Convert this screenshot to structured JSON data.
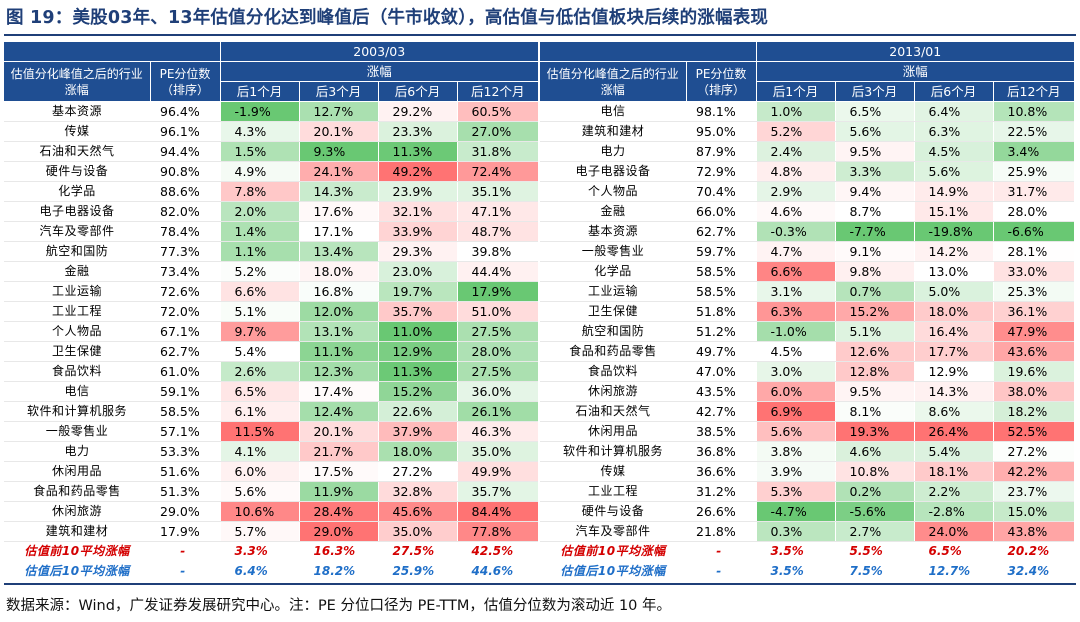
{
  "title": "图 19：美股03年、13年估值分化达到峰值后（牛市收敛），高估值与低估值板块后续的涨幅表现",
  "headers": {
    "industry": "估值分化峰值之后的行业涨幅",
    "pe": "PE分位数（排序）",
    "gain": "涨幅",
    "periods": [
      "后1个月",
      "后3个月",
      "后6个月",
      "后12个月"
    ]
  },
  "footnote": "数据来源：Wind，广发证券发展研究中心。注：PE 分位口径为 PE-TTM，估值分位数为滚动近 10 年。",
  "colors": {
    "header_bg": "#1f4e92",
    "title": "#1f3f78",
    "avg_pre": "#d40000",
    "avg_post": "#1f6fc8"
  },
  "panels": [
    {
      "period": "2003/03",
      "industry_header": "估值分化峰值之后的行业涨幅",
      "rows": [
        {
          "industry": "基本资源",
          "pe": "96.4%",
          "m1": "-1.9%",
          "m3": "12.7%",
          "m6": "29.2%",
          "m12": "60.5%"
        },
        {
          "industry": "传媒",
          "pe": "96.1%",
          "m1": "4.3%",
          "m3": "20.1%",
          "m6": "23.3%",
          "m12": "27.0%"
        },
        {
          "industry": "石油和天然气",
          "pe": "94.4%",
          "m1": "1.5%",
          "m3": "9.3%",
          "m6": "11.3%",
          "m12": "31.8%"
        },
        {
          "industry": "硬件与设备",
          "pe": "90.8%",
          "m1": "4.9%",
          "m3": "24.1%",
          "m6": "49.2%",
          "m12": "72.4%"
        },
        {
          "industry": "化学品",
          "pe": "88.6%",
          "m1": "7.8%",
          "m3": "14.3%",
          "m6": "23.9%",
          "m12": "35.1%"
        },
        {
          "industry": "电子电器设备",
          "pe": "82.0%",
          "m1": "2.0%",
          "m3": "17.6%",
          "m6": "32.1%",
          "m12": "47.1%"
        },
        {
          "industry": "汽车及零部件",
          "pe": "78.4%",
          "m1": "1.4%",
          "m3": "17.1%",
          "m6": "33.9%",
          "m12": "48.7%"
        },
        {
          "industry": "航空和国防",
          "pe": "77.3%",
          "m1": "1.1%",
          "m3": "13.4%",
          "m6": "29.3%",
          "m12": "39.8%"
        },
        {
          "industry": "金融",
          "pe": "73.4%",
          "m1": "5.2%",
          "m3": "18.0%",
          "m6": "23.0%",
          "m12": "44.4%"
        },
        {
          "industry": "工业运输",
          "pe": "72.6%",
          "m1": "6.6%",
          "m3": "16.8%",
          "m6": "19.7%",
          "m12": "17.9%"
        },
        {
          "industry": "工业工程",
          "pe": "72.0%",
          "m1": "5.1%",
          "m3": "12.0%",
          "m6": "35.7%",
          "m12": "51.0%"
        },
        {
          "industry": "个人物品",
          "pe": "67.1%",
          "m1": "9.7%",
          "m3": "13.1%",
          "m6": "11.0%",
          "m12": "27.5%"
        },
        {
          "industry": "卫生保健",
          "pe": "62.7%",
          "m1": "5.4%",
          "m3": "11.1%",
          "m6": "12.9%",
          "m12": "28.0%"
        },
        {
          "industry": "食品饮料",
          "pe": "61.0%",
          "m1": "2.6%",
          "m3": "12.3%",
          "m6": "11.3%",
          "m12": "27.5%"
        },
        {
          "industry": "电信",
          "pe": "59.1%",
          "m1": "6.5%",
          "m3": "17.4%",
          "m6": "15.2%",
          "m12": "36.0%"
        },
        {
          "industry": "软件和计算机服务",
          "pe": "58.5%",
          "m1": "6.1%",
          "m3": "12.4%",
          "m6": "22.6%",
          "m12": "26.1%"
        },
        {
          "industry": "一般零售业",
          "pe": "57.1%",
          "m1": "11.5%",
          "m3": "20.1%",
          "m6": "37.9%",
          "m12": "46.3%"
        },
        {
          "industry": "电力",
          "pe": "53.3%",
          "m1": "4.1%",
          "m3": "21.7%",
          "m6": "18.0%",
          "m12": "35.0%"
        },
        {
          "industry": "休闲用品",
          "pe": "51.6%",
          "m1": "6.0%",
          "m3": "17.5%",
          "m6": "27.2%",
          "m12": "49.9%"
        },
        {
          "industry": "食品和药品零售",
          "pe": "51.3%",
          "m1": "5.6%",
          "m3": "11.9%",
          "m6": "32.8%",
          "m12": "35.7%"
        },
        {
          "industry": "休闲旅游",
          "pe": "29.0%",
          "m1": "10.6%",
          "m3": "28.4%",
          "m6": "45.6%",
          "m12": "84.4%"
        },
        {
          "industry": "建筑和建材",
          "pe": "17.9%",
          "m1": "5.7%",
          "m3": "29.0%",
          "m6": "35.0%",
          "m12": "77.8%"
        }
      ],
      "avg_pre": {
        "label": "估值前10平均涨幅",
        "pe": "-",
        "m1": "3.3%",
        "m3": "16.3%",
        "m6": "27.5%",
        "m12": "42.5%"
      },
      "avg_post": {
        "label": "估值后10平均涨幅",
        "pe": "-",
        "m1": "6.4%",
        "m3": "18.2%",
        "m6": "25.9%",
        "m12": "44.6%"
      }
    },
    {
      "period": "2013/01",
      "industry_header": "估值分化峰值之后的行业涨幅",
      "rows": [
        {
          "industry": "电信",
          "pe": "98.1%",
          "m1": "1.0%",
          "m3": "6.5%",
          "m6": "6.4%",
          "m12": "10.8%"
        },
        {
          "industry": "建筑和建材",
          "pe": "95.0%",
          "m1": "5.2%",
          "m3": "5.6%",
          "m6": "6.3%",
          "m12": "22.5%"
        },
        {
          "industry": "电力",
          "pe": "87.9%",
          "m1": "2.4%",
          "m3": "9.5%",
          "m6": "4.5%",
          "m12": "3.4%"
        },
        {
          "industry": "电子电器设备",
          "pe": "72.9%",
          "m1": "4.8%",
          "m3": "3.3%",
          "m6": "5.6%",
          "m12": "25.9%"
        },
        {
          "industry": "个人物品",
          "pe": "70.4%",
          "m1": "2.9%",
          "m3": "9.4%",
          "m6": "14.9%",
          "m12": "31.7%"
        },
        {
          "industry": "金融",
          "pe": "66.0%",
          "m1": "4.6%",
          "m3": "8.7%",
          "m6": "15.1%",
          "m12": "28.0%"
        },
        {
          "industry": "基本资源",
          "pe": "62.7%",
          "m1": "-0.3%",
          "m3": "-7.7%",
          "m6": "-19.8%",
          "m12": "-6.6%"
        },
        {
          "industry": "一般零售业",
          "pe": "59.7%",
          "m1": "4.7%",
          "m3": "9.1%",
          "m6": "14.2%",
          "m12": "28.1%"
        },
        {
          "industry": "化学品",
          "pe": "58.5%",
          "m1": "6.6%",
          "m3": "9.8%",
          "m6": "13.0%",
          "m12": "33.0%"
        },
        {
          "industry": "工业运输",
          "pe": "58.5%",
          "m1": "3.1%",
          "m3": "0.7%",
          "m6": "5.0%",
          "m12": "25.3%"
        },
        {
          "industry": "卫生保健",
          "pe": "51.8%",
          "m1": "6.3%",
          "m3": "15.2%",
          "m6": "18.0%",
          "m12": "36.1%"
        },
        {
          "industry": "航空和国防",
          "pe": "51.2%",
          "m1": "-1.0%",
          "m3": "5.1%",
          "m6": "16.4%",
          "m12": "47.9%"
        },
        {
          "industry": "食品和药品零售",
          "pe": "49.7%",
          "m1": "4.5%",
          "m3": "12.6%",
          "m6": "17.7%",
          "m12": "43.6%"
        },
        {
          "industry": "食品饮料",
          "pe": "47.0%",
          "m1": "3.0%",
          "m3": "12.8%",
          "m6": "12.9%",
          "m12": "19.6%"
        },
        {
          "industry": "休闲旅游",
          "pe": "43.5%",
          "m1": "6.0%",
          "m3": "9.5%",
          "m6": "14.3%",
          "m12": "38.0%"
        },
        {
          "industry": "石油和天然气",
          "pe": "42.7%",
          "m1": "6.9%",
          "m3": "8.1%",
          "m6": "8.6%",
          "m12": "18.2%"
        },
        {
          "industry": "休闲用品",
          "pe": "38.5%",
          "m1": "5.6%",
          "m3": "19.3%",
          "m6": "26.4%",
          "m12": "52.5%"
        },
        {
          "industry": "软件和计算机服务",
          "pe": "36.8%",
          "m1": "3.8%",
          "m3": "4.6%",
          "m6": "5.4%",
          "m12": "27.2%"
        },
        {
          "industry": "传媒",
          "pe": "36.6%",
          "m1": "3.9%",
          "m3": "10.8%",
          "m6": "18.1%",
          "m12": "42.2%"
        },
        {
          "industry": "工业工程",
          "pe": "31.2%",
          "m1": "5.3%",
          "m3": "0.2%",
          "m6": "2.2%",
          "m12": "23.7%"
        },
        {
          "industry": "硬件与设备",
          "pe": "26.6%",
          "m1": "-4.7%",
          "m3": "-5.6%",
          "m6": "-2.8%",
          "m12": "15.0%"
        },
        {
          "industry": "汽车及零部件",
          "pe": "21.8%",
          "m1": "0.3%",
          "m3": "2.7%",
          "m6": "24.0%",
          "m12": "43.8%"
        }
      ],
      "avg_pre": {
        "label": "估值前10平均涨幅",
        "pe": "-",
        "m1": "3.5%",
        "m3": "5.5%",
        "m6": "6.5%",
        "m12": "20.2%"
      },
      "avg_post": {
        "label": "估值后10平均涨幅",
        "pe": "-",
        "m1": "3.5%",
        "m3": "7.5%",
        "m6": "12.7%",
        "m12": "32.4%"
      }
    }
  ]
}
